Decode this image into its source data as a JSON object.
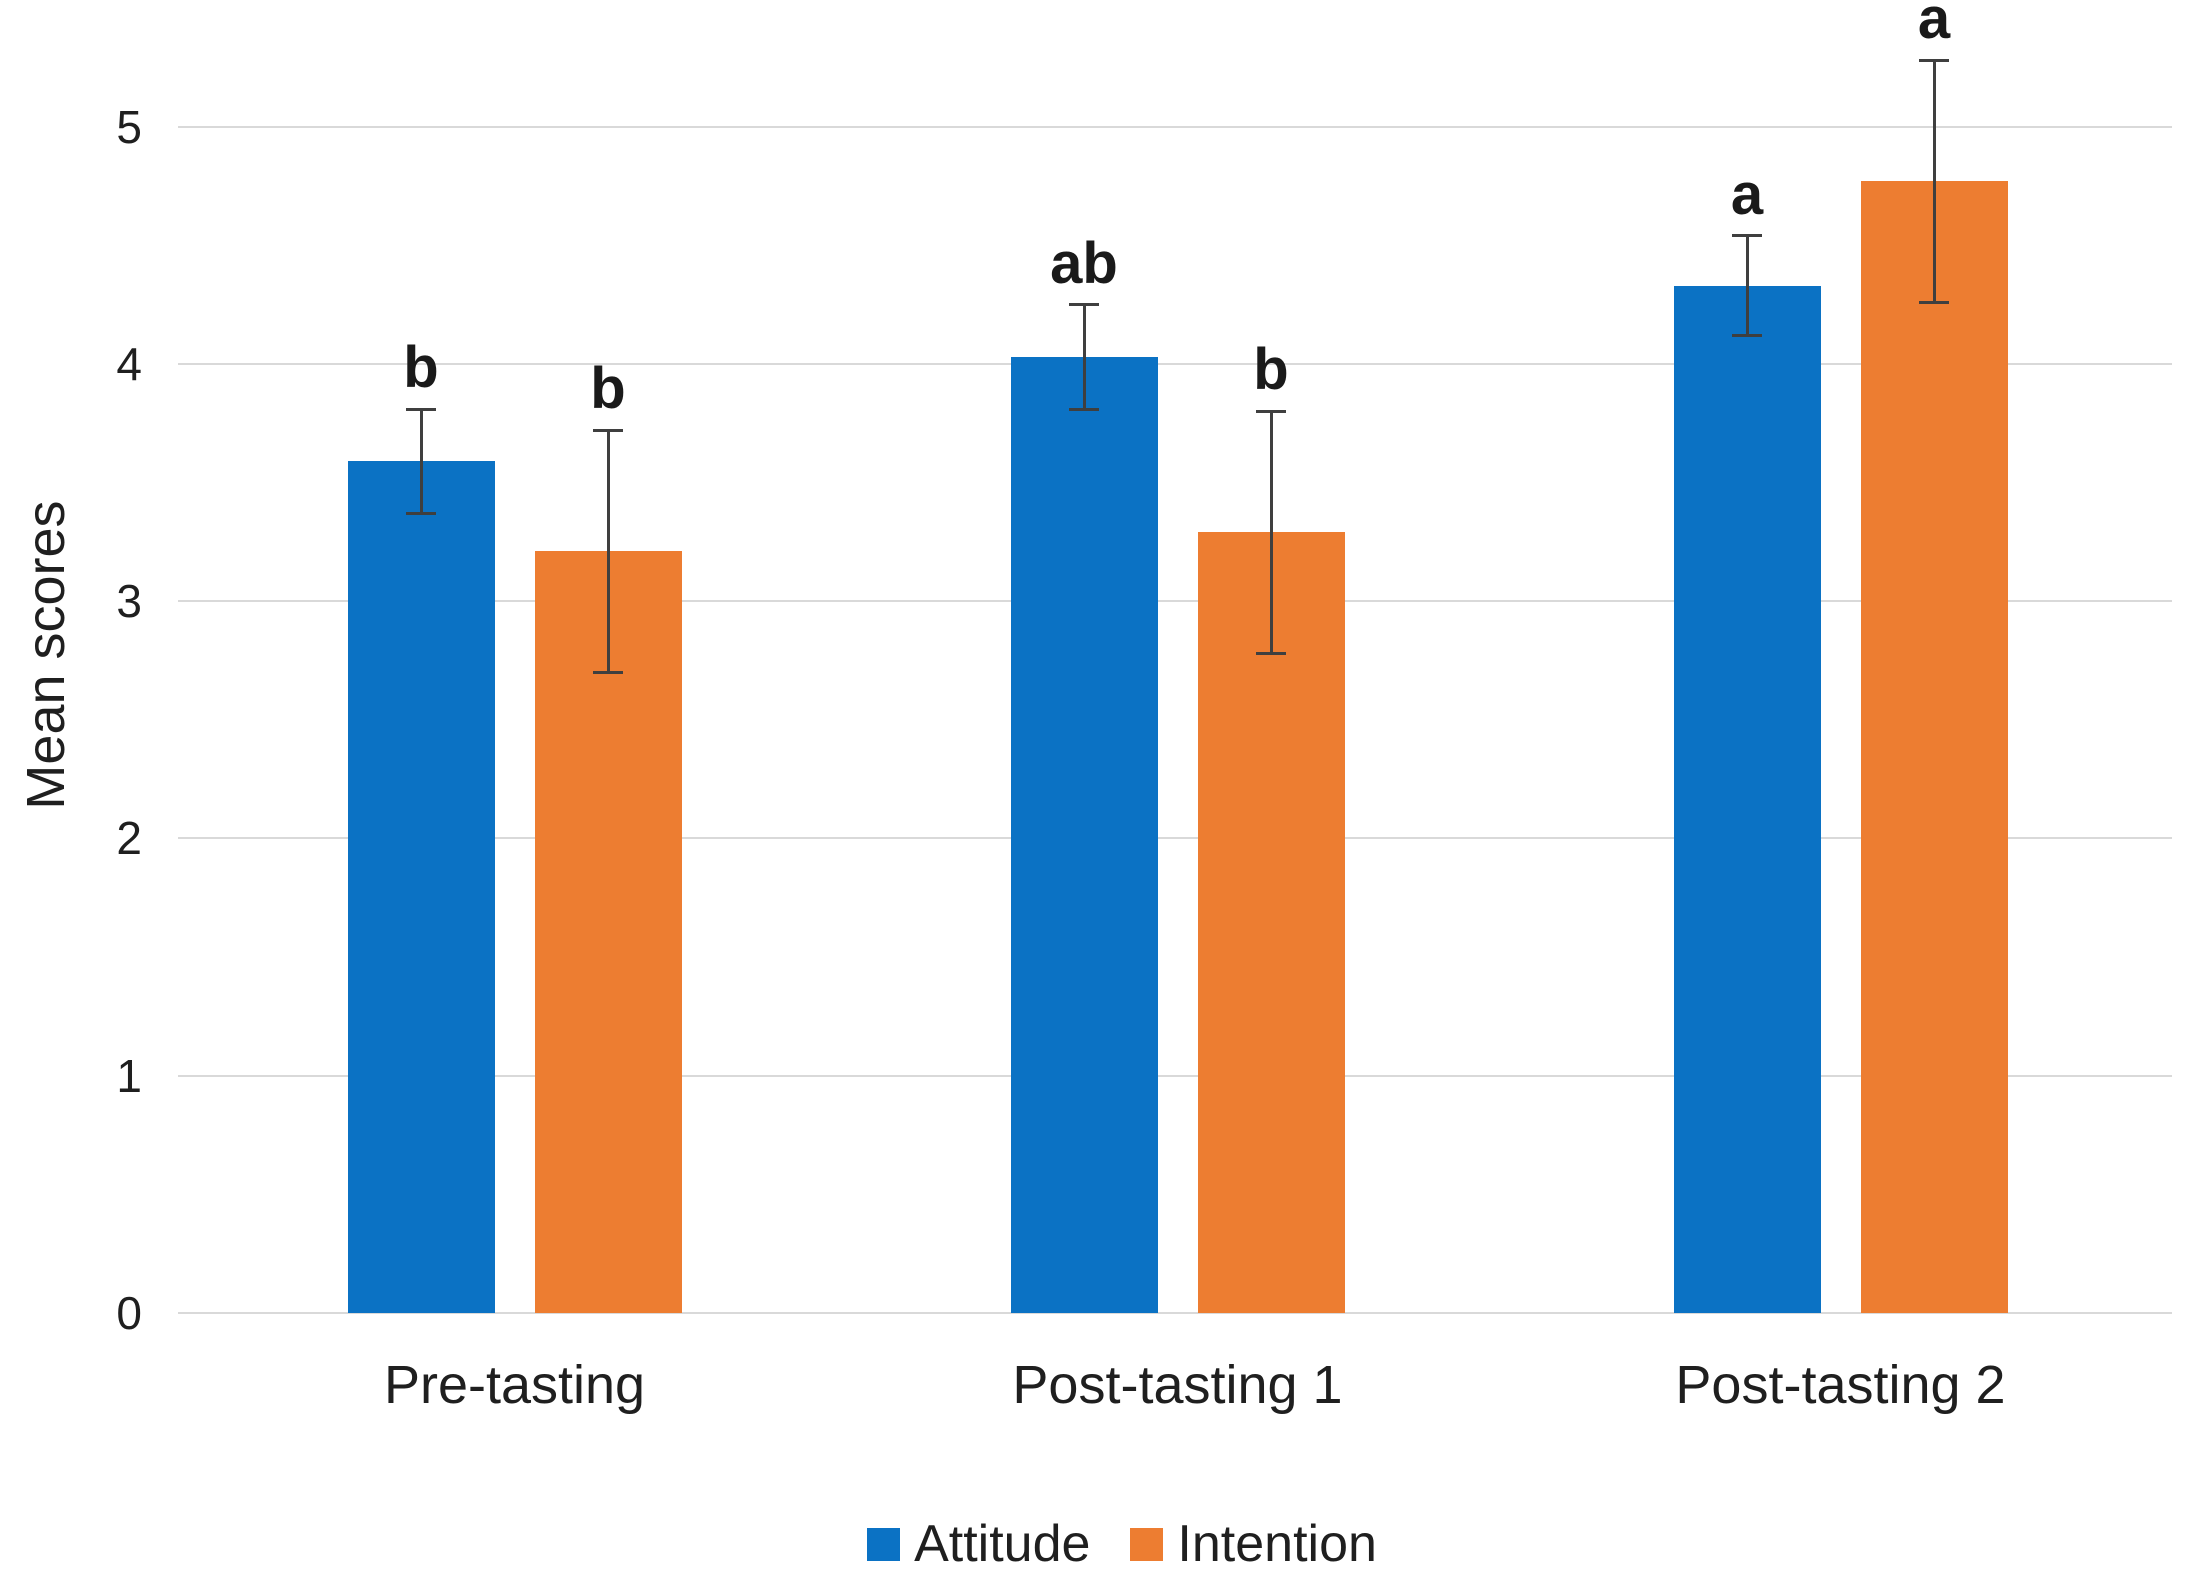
{
  "chart_data": {
    "type": "bar",
    "title": "",
    "xlabel": "",
    "ylabel": "Mean scores",
    "categories": [
      "Pre-tasting",
      "Post-tasting 1",
      "Post-tasting 2"
    ],
    "series": [
      {
        "name": "Attitude",
        "color": "#0B72C4",
        "values": [
          3.59,
          4.03,
          4.33
        ],
        "error_bars": [
          0.22,
          0.22,
          0.21
        ],
        "sig_letters": [
          "b",
          "ab",
          "a"
        ]
      },
      {
        "name": "Intention",
        "color": "#ED7D31",
        "values": [
          3.21,
          3.29,
          4.77
        ],
        "error_bars": [
          0.51,
          0.51,
          0.51
        ],
        "sig_letters": [
          "b",
          "b",
          "a"
        ]
      }
    ],
    "ylim": [
      0,
      5.5
    ],
    "yticks": [
      0,
      1,
      2,
      3,
      4,
      5
    ],
    "grid": true,
    "gridline_color": "#D9D9D9",
    "error_bar_color": "#3F3F3F",
    "text_color": "#1F1F1F",
    "background_color": "#FFFFFF",
    "legend_position": "bottom"
  }
}
